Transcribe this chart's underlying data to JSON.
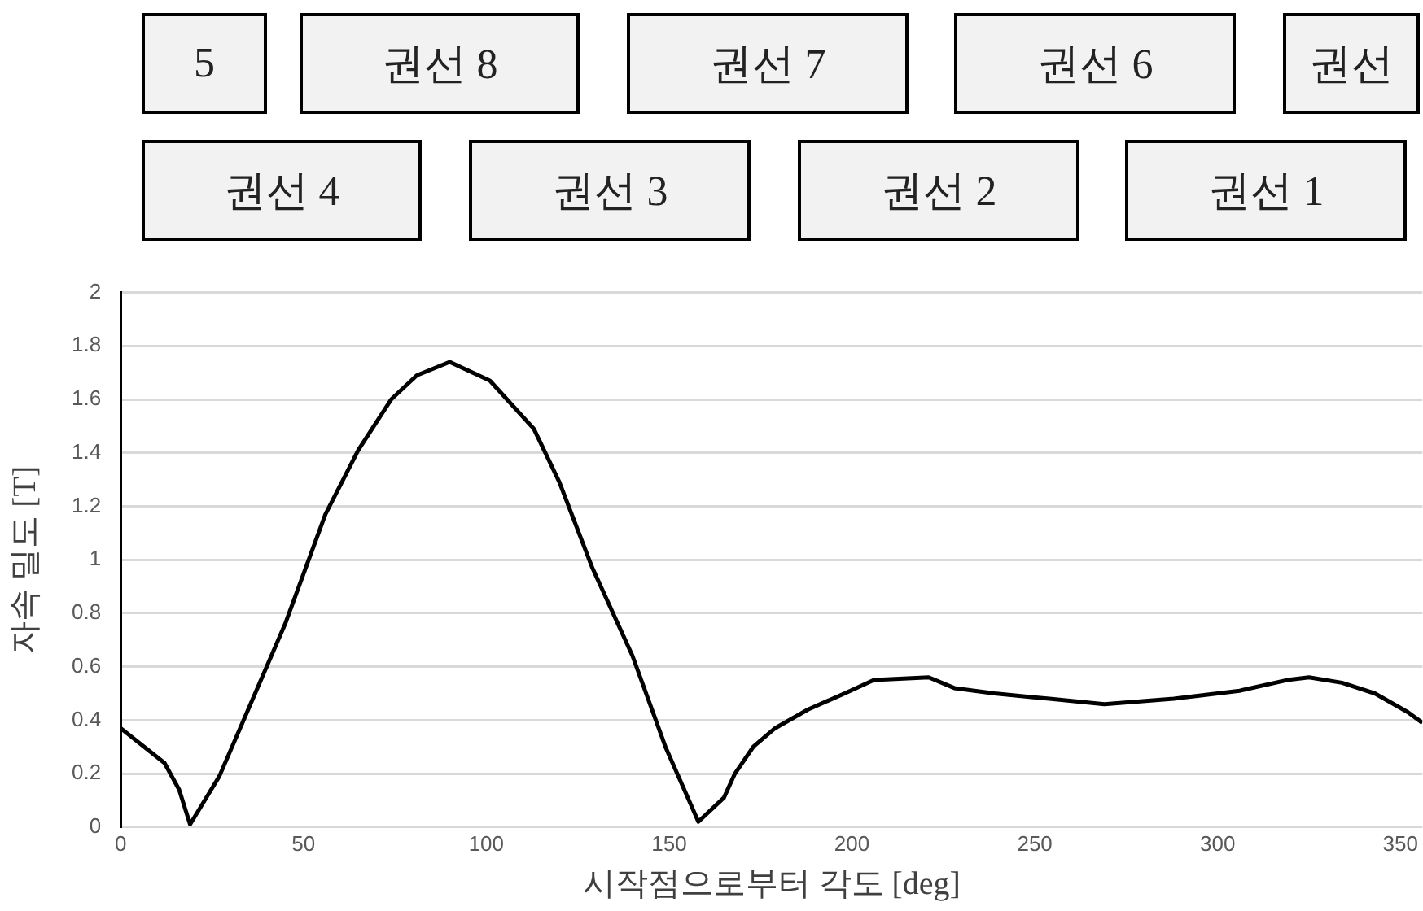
{
  "chart_data": {
    "type": "line",
    "xlabel": "시작점으로부터 각도 [deg]",
    "ylabel": "자속 밀도 [T]",
    "annotations": [
      "5",
      "권선 8",
      "권선 7",
      "권선 6",
      "권선",
      "권선 4",
      "권선 3",
      "권선 2",
      "권선 1"
    ],
    "x": [
      0,
      12,
      16,
      19,
      27,
      33,
      45,
      56,
      65,
      74,
      81,
      90,
      101,
      113,
      120,
      129,
      140,
      149,
      158,
      165,
      168,
      173,
      179,
      188,
      198,
      206,
      221,
      228,
      239,
      254,
      269,
      288,
      306,
      319,
      325,
      334,
      343,
      352,
      356
    ],
    "series": [
      {
        "color": "#000000",
        "values": [
          0.37,
          0.24,
          0.14,
          0.01,
          0.19,
          0.38,
          0.76,
          1.17,
          1.41,
          1.6,
          1.69,
          1.74,
          1.67,
          1.49,
          1.29,
          0.97,
          0.64,
          0.3,
          0.02,
          0.11,
          0.2,
          0.3,
          0.37,
          0.44,
          0.5,
          0.55,
          0.56,
          0.52,
          0.5,
          0.48,
          0.46,
          0.48,
          0.51,
          0.55,
          0.56,
          0.54,
          0.5,
          0.43,
          0.39
        ]
      }
    ],
    "xlim": [
      0,
      356
    ],
    "xticks": [
      0,
      50,
      100,
      150,
      200,
      250,
      300,
      350
    ],
    "ylim": [
      0,
      2
    ],
    "yticks": [
      0,
      0.2,
      0.4,
      0.6,
      0.8,
      1,
      1.2,
      1.4,
      1.6,
      1.8,
      2
    ],
    "grid": "y",
    "legend": false,
    "marker": "none",
    "line_style": "solid"
  }
}
